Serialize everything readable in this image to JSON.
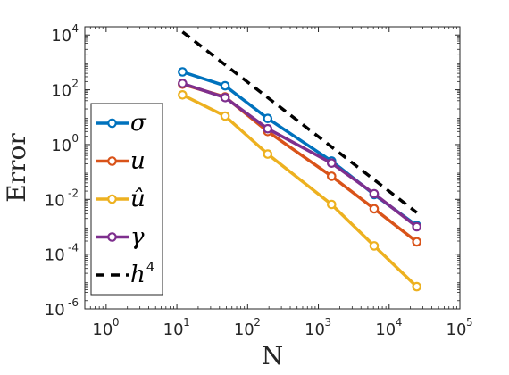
{
  "chart_data": {
    "type": "line",
    "title": "",
    "xlabel": "N",
    "ylabel": "Error",
    "xscale": "log",
    "yscale": "log",
    "xlim": [
      0.5,
      100000
    ],
    "ylim": [
      1e-06,
      20000
    ],
    "grid": false,
    "legend_position": "left",
    "x_ticks": [
      {
        "base": "10",
        "exp": "0",
        "value": 1
      },
      {
        "base": "10",
        "exp": "1",
        "value": 10
      },
      {
        "base": "10",
        "exp": "2",
        "value": 100
      },
      {
        "base": "10",
        "exp": "3",
        "value": 1000
      },
      {
        "base": "10",
        "exp": "4",
        "value": 10000
      },
      {
        "base": "10",
        "exp": "5",
        "value": 100000
      }
    ],
    "y_ticks": [
      {
        "base": "10",
        "exp": "-6",
        "value": 1e-06
      },
      {
        "base": "10",
        "exp": "-4",
        "value": 0.0001
      },
      {
        "base": "10",
        "exp": "-2",
        "value": 0.01
      },
      {
        "base": "10",
        "exp": "0",
        "value": 1
      },
      {
        "base": "10",
        "exp": "2",
        "value": 100
      },
      {
        "base": "10",
        "exp": "4",
        "value": 10000
      }
    ],
    "x": [
      12,
      48,
      192,
      1536,
      6144,
      24576
    ],
    "series": [
      {
        "name": "σ",
        "color": "#0072BD",
        "marker": "circle",
        "dash": "solid",
        "values": [
          450,
          140,
          9,
          0.25,
          0.015,
          0.0011
        ]
      },
      {
        "name": "u",
        "color": "#D95319",
        "marker": "circle",
        "dash": "solid",
        "values": [
          160,
          55,
          3,
          0.07,
          0.0045,
          0.00028
        ]
      },
      {
        "name": "û",
        "color": "#EDB120",
        "marker": "circle",
        "dash": "solid",
        "values": [
          65,
          11,
          0.45,
          0.0065,
          0.0002,
          6.5e-06
        ]
      },
      {
        "name": "γ",
        "color": "#7E2F8E",
        "marker": "circle",
        "dash": "solid",
        "values": [
          170,
          52,
          3.8,
          0.21,
          0.016,
          0.001
        ]
      },
      {
        "name": "h",
        "name_sup": "4",
        "color": "#000000",
        "marker": "none",
        "dash": "dashed",
        "x": [
          12,
          24576
        ],
        "values": [
          13000,
          0.0033
        ]
      }
    ]
  }
}
